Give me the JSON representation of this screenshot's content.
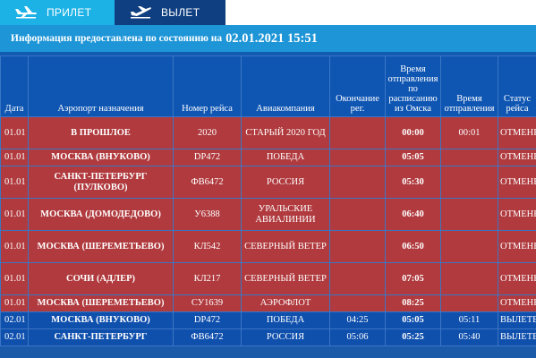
{
  "tabs": {
    "arrivals": "ПРИЛЕТ",
    "departures": "ВЫЛЕТ"
  },
  "info": {
    "text": "Информация предоставлена по состоянию на",
    "datetime": "02.01.2021 15:51"
  },
  "colors": {
    "cancelled_row": "#b03a3e",
    "departed_row": "#1050ad",
    "header": "#0f56b3",
    "tab_active": "#1db2e6",
    "info_bar": "#1d95d7"
  },
  "table": {
    "headers": [
      "Дата",
      "Аэропорт назначения",
      "Номер рейса",
      "Авиакомпания",
      "Окончание рег.",
      "Время отправления по расписанию из Омска",
      "Время отправления",
      "Статус рейса"
    ],
    "rows": [
      {
        "date": "01.01",
        "airport": "В ПРОШЛОЕ",
        "flight": "2020",
        "airline": "СТАРЫЙ 2020 ГОД",
        "checkin_end": "",
        "scheduled": "00:00",
        "departure": "00:01",
        "status": "ОТМЕНЕН"
      },
      {
        "date": "01.01",
        "airport": "МОСКВА (ВНУКОВО)",
        "flight": "DP472",
        "airline": "ПОБЕДА",
        "checkin_end": "",
        "scheduled": "05:05",
        "departure": "",
        "status": "ОТМЕНЕН"
      },
      {
        "date": "01.01",
        "airport": "САНКТ-ПЕТЕРБУРГ (ПУЛКОВО)",
        "flight": "ФВ6472",
        "airline": "РОССИЯ",
        "checkin_end": "",
        "scheduled": "05:30",
        "departure": "",
        "status": "ОТМЕНЕН"
      },
      {
        "date": "01.01",
        "airport": "МОСКВА (ДОМОДЕДОВО)",
        "flight": "У6388",
        "airline": "УРАЛЬСКИЕ АВИАЛИНИИ",
        "checkin_end": "",
        "scheduled": "06:40",
        "departure": "",
        "status": "ОТМЕНЕН"
      },
      {
        "date": "01.01",
        "airport": "МОСКВА (ШЕРЕМЕТЬЕВО)",
        "flight": "КЛ542",
        "airline": "СЕВЕРНЫЙ ВЕТЕР",
        "checkin_end": "",
        "scheduled": "06:50",
        "departure": "",
        "status": "ОТМЕНЕН"
      },
      {
        "date": "01.01",
        "airport": "СОЧИ (АДЛЕР)",
        "flight": "КЛ217",
        "airline": "СЕВЕРНЫЙ ВЕТЕР",
        "checkin_end": "",
        "scheduled": "07:05",
        "departure": "",
        "status": "ОТМЕНЕН"
      },
      {
        "date": "01.01",
        "airport": "МОСКВА (ШЕРЕМЕТЬЕВО)",
        "flight": "СУ1639",
        "airline": "АЭРОФЛОТ",
        "checkin_end": "",
        "scheduled": "08:25",
        "departure": "",
        "status": "ОТМЕНЕН"
      },
      {
        "date": "02.01",
        "airport": "МОСКВА (ВНУКОВО)",
        "flight": "DP472",
        "airline": "ПОБЕДА",
        "checkin_end": "04:25",
        "scheduled": "05:05",
        "departure": "05:11",
        "status": "ВЫЛЕТЕЛ"
      },
      {
        "date": "02.01",
        "airport": "САНКТ-ПЕТЕРБУРГ",
        "flight": "ФВ6472",
        "airline": "РОССИЯ",
        "checkin_end": "05:06",
        "scheduled": "05:25",
        "departure": "05:40",
        "status": "ВЫЛЕТЕЛ"
      }
    ]
  }
}
